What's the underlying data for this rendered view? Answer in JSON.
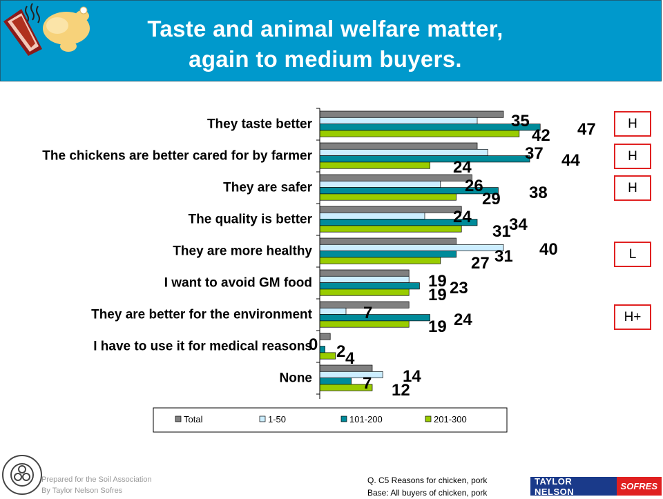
{
  "header": {
    "title_line1": "Taste and animal welfare matter,",
    "title_line2": "again to medium buyers.",
    "background_color": "#0099cc"
  },
  "chart_data": {
    "type": "bar",
    "orientation": "horizontal",
    "categories": [
      "They taste better",
      "The chickens are better cared for by farmer",
      "They are safer",
      "The quality is better",
      "They are more healthy",
      "I want to avoid GM food",
      "They are better for the environment",
      "I have to use it for medical reasons",
      "None"
    ],
    "series": [
      {
        "name": "Total",
        "color": "#808080",
        "values": [
          35,
          30,
          29,
          27,
          26,
          17,
          17,
          2,
          10
        ]
      },
      {
        "name": "1-50",
        "color": "#cceeff",
        "values": [
          30,
          32,
          23,
          20,
          35,
          17,
          5,
          0,
          12
        ]
      },
      {
        "name": "101-200",
        "color": "#008b9a",
        "values": [
          42,
          40,
          34,
          30,
          26,
          19,
          21,
          1,
          6
        ]
      },
      {
        "name": "201-300",
        "color": "#99cc00",
        "values": [
          38,
          21,
          26,
          27,
          23,
          17,
          17,
          3,
          10
        ]
      }
    ],
    "data_labels": [
      {
        "category": "They taste better",
        "labels": [
          "35",
          "47",
          "42"
        ]
      },
      {
        "category": "The chickens are better cared for by farmer",
        "labels": [
          "37",
          "44",
          "24"
        ]
      },
      {
        "category": "They are safer",
        "labels": [
          "26",
          "38",
          "29"
        ]
      },
      {
        "category": "The quality is better",
        "labels": [
          "24",
          "34",
          "31"
        ]
      },
      {
        "category": "They are more healthy",
        "labels": [
          "40",
          "31",
          "27"
        ]
      },
      {
        "category": "I want to avoid GM food",
        "labels": [
          "19",
          "23",
          "19"
        ]
      },
      {
        "category": "They are better for the environment",
        "labels": [
          "7",
          "24",
          "19"
        ]
      },
      {
        "category": "I have to use it for medical reasons",
        "labels": [
          "0",
          "2",
          "4"
        ]
      },
      {
        "category": "None",
        "labels": [
          "14",
          "7",
          "12"
        ]
      }
    ],
    "xlim": [
      0,
      55
    ],
    "legend": {
      "placement": "bottom",
      "items": [
        "Total",
        "1-50",
        "101-200",
        "201-300"
      ]
    },
    "grid": false
  },
  "significance_markers": [
    "H",
    "H",
    "H",
    "L",
    "H+"
  ],
  "footer": {
    "prepared_line1": "Prepared for the Soil Association",
    "prepared_line2": "By Taylor Nelson Sofres",
    "note_line1": "Q. C5 Reasons for chicken, pork",
    "note_line2": "Base: All buyers of chicken, pork",
    "logo_tns_name": "TAYLOR NELSON",
    "logo_tns_sofres": "SOFRES"
  }
}
